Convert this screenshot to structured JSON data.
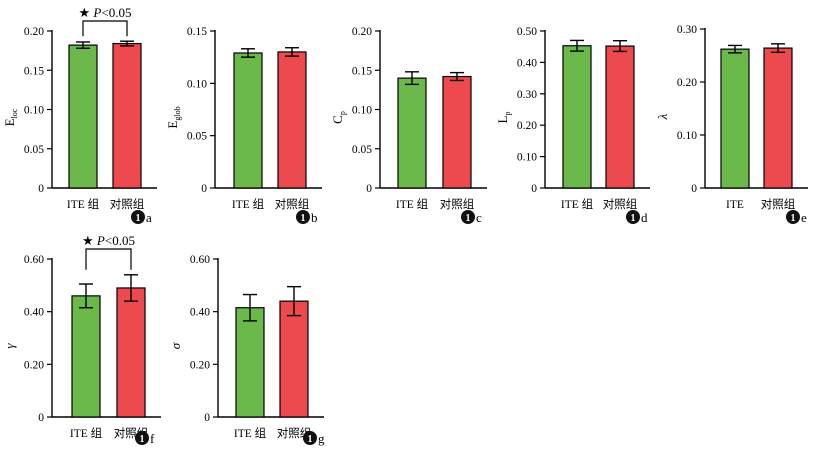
{
  "colors": {
    "green": "#6ab94a",
    "red": "#ec4a4e",
    "axis": "#000000"
  },
  "chart_data": [
    {
      "panel": "a",
      "type": "bar",
      "categories": [
        "ITE 组",
        "对照组"
      ],
      "values": [
        0.182,
        0.184
      ],
      "errors": [
        0.004,
        0.003
      ],
      "ylabel_main": "E",
      "ylabel_sub": "loc",
      "ylim": [
        0,
        0.2
      ],
      "yticks": [
        0,
        0.05,
        0.1,
        0.15,
        0.2
      ],
      "ytick_labels": [
        "0",
        "0.05",
        "0.10",
        "0.15",
        "0.20"
      ],
      "significance": {
        "star": "★",
        "italic": "P",
        "text": "<0.05"
      }
    },
    {
      "panel": "b",
      "type": "bar",
      "categories": [
        "ITE 组",
        "对照组"
      ],
      "values": [
        0.129,
        0.13
      ],
      "errors": [
        0.004,
        0.004
      ],
      "ylabel_main": "E",
      "ylabel_sub": "glob",
      "ylim": [
        0,
        0.15
      ],
      "yticks": [
        0,
        0.05,
        0.1,
        0.15
      ],
      "ytick_labels": [
        "0",
        "0.05",
        "0.10",
        "0.15"
      ]
    },
    {
      "panel": "c",
      "type": "bar",
      "categories": [
        "ITE 组",
        "对照组"
      ],
      "values": [
        0.14,
        0.142
      ],
      "errors": [
        0.008,
        0.005
      ],
      "ylabel_main": "C",
      "ylabel_sub": "p",
      "ylim": [
        0,
        0.2
      ],
      "yticks": [
        0,
        0.05,
        0.1,
        0.15,
        0.2
      ],
      "ytick_labels": [
        "0",
        "0.05",
        "0.10",
        "0.15",
        "0.20"
      ]
    },
    {
      "panel": "d",
      "type": "bar",
      "categories": [
        "ITE 组",
        "对照组"
      ],
      "values": [
        0.453,
        0.452
      ],
      "errors": [
        0.017,
        0.017
      ],
      "ylabel_main": "L",
      "ylabel_sub": "p",
      "ylim": [
        0,
        0.5
      ],
      "yticks": [
        0,
        0.1,
        0.2,
        0.3,
        0.4,
        0.5
      ],
      "ytick_labels": [
        "0",
        "0.10",
        "0.20",
        "0.30",
        "0.40",
        "0.50"
      ]
    },
    {
      "panel": "e",
      "type": "bar",
      "categories": [
        "ITE",
        "对照组"
      ],
      "values": [
        0.262,
        0.264
      ],
      "errors": [
        0.007,
        0.008
      ],
      "ylabel_main": "λ",
      "ylabel_sub": "",
      "ylim": [
        0,
        0.3
      ],
      "yticks": [
        0,
        0.1,
        0.2,
        0.3
      ],
      "ytick_labels": [
        "0",
        "0.10",
        "0.20",
        "0.30"
      ]
    },
    {
      "panel": "f",
      "type": "bar",
      "categories": [
        "ITE 组",
        "对照组"
      ],
      "values": [
        0.46,
        0.49
      ],
      "errors": [
        0.045,
        0.05
      ],
      "ylabel_main": "γ",
      "ylabel_sub": "",
      "ylim": [
        0,
        0.6
      ],
      "yticks": [
        0,
        0.2,
        0.4,
        0.6
      ],
      "ytick_labels": [
        "0",
        "0.20",
        "0.40",
        "0.60"
      ],
      "significance": {
        "star": "★",
        "italic": "P",
        "text": "<0.05"
      }
    },
    {
      "panel": "g",
      "type": "bar",
      "categories": [
        "ITE 组",
        "对照组"
      ],
      "values": [
        0.415,
        0.44
      ],
      "errors": [
        0.05,
        0.055
      ],
      "ylabel_main": "σ",
      "ylabel_sub": "",
      "ylim": [
        0,
        0.6
      ],
      "yticks": [
        0,
        0.2,
        0.4,
        0.6
      ],
      "ytick_labels": [
        "0",
        "0.20",
        "0.40",
        "0.60"
      ]
    }
  ]
}
